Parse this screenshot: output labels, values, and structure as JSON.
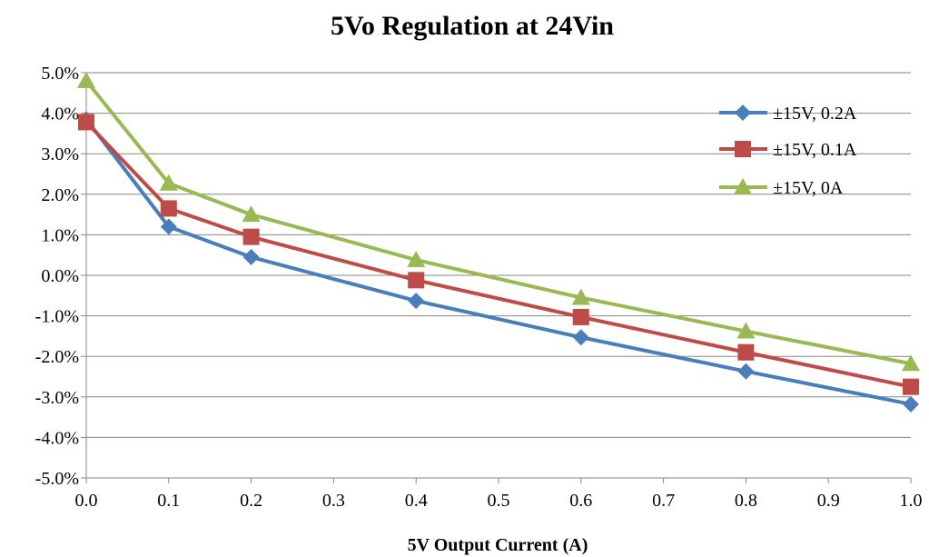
{
  "chart_data": {
    "type": "line",
    "title": "5Vo Regulation at 24Vin",
    "xlabel": "5V Output Current (A)",
    "ylabel": "",
    "xlim": [
      0,
      1
    ],
    "ylim": [
      -5,
      5
    ],
    "xticks": [
      0,
      0.1,
      0.2,
      0.3,
      0.4,
      0.5,
      0.6,
      0.7,
      0.8,
      0.9,
      1.0
    ],
    "xtick_labels": [
      "0.0",
      "0.1",
      "0.2",
      "0.3",
      "0.4",
      "0.5",
      "0.6",
      "0.7",
      "0.8",
      "0.9",
      "1.0"
    ],
    "yticks": [
      5,
      4,
      3,
      2,
      1,
      0,
      -1,
      -2,
      -3,
      -4,
      -5
    ],
    "ytick_labels": [
      "5.0%",
      "4.0%",
      "3.0%",
      "2.0%",
      "1.0%",
      "0.0%",
      "-1.0%",
      "-2.0%",
      "-3.0%",
      "-4.0%",
      "-5.0%"
    ],
    "grid": "horizontal",
    "legend_position": "top-right",
    "series": [
      {
        "name": "±15V, 0.2A",
        "color": "#4a7ebb",
        "marker": "diamond",
        "x": [
          0,
          0.1,
          0.2,
          0.4,
          0.6,
          0.8,
          1.0
        ],
        "y": [
          3.85,
          1.2,
          0.45,
          -0.63,
          -1.53,
          -2.37,
          -3.18
        ]
      },
      {
        "name": "±15V, 0.1A",
        "color": "#be4b48",
        "marker": "square",
        "x": [
          0,
          0.1,
          0.2,
          0.4,
          0.6,
          0.8,
          1.0
        ],
        "y": [
          3.78,
          1.65,
          0.95,
          -0.12,
          -1.03,
          -1.9,
          -2.75
        ]
      },
      {
        "name": "±15V, 0A",
        "color": "#98b954",
        "marker": "triangle",
        "x": [
          0,
          0.1,
          0.2,
          0.4,
          0.6,
          0.8,
          1.0
        ],
        "y": [
          4.8,
          2.27,
          1.5,
          0.38,
          -0.55,
          -1.38,
          -2.18
        ]
      }
    ]
  }
}
